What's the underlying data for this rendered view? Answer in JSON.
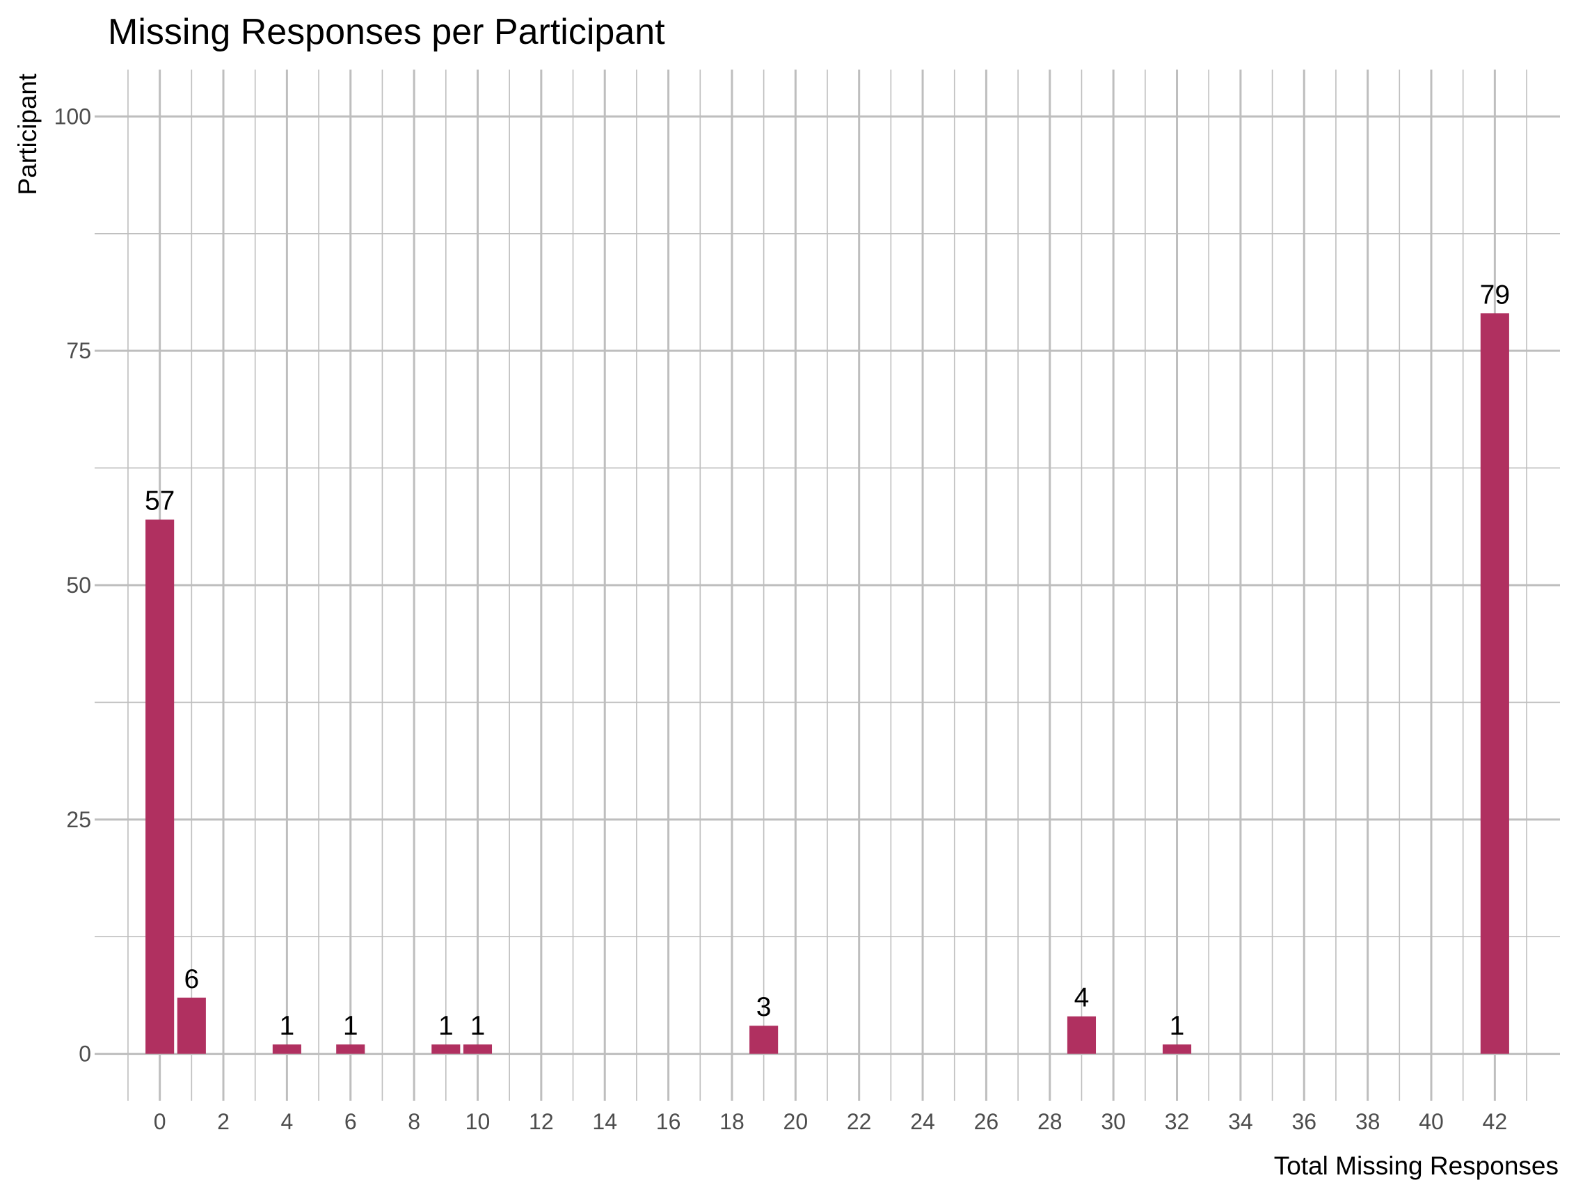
{
  "chart_data": {
    "type": "bar",
    "title": "Missing Responses per Participant",
    "xlabel": "Total Missing Responses",
    "ylabel": "Participant",
    "x": [
      0,
      1,
      4,
      6,
      9,
      10,
      19,
      29,
      32,
      42
    ],
    "values": [
      57,
      6,
      1,
      1,
      1,
      1,
      3,
      4,
      1,
      79
    ],
    "data_labels": [
      "57",
      "6",
      "1",
      "1",
      "1",
      "1",
      "3",
      "4",
      "1",
      "79"
    ],
    "xticks": [
      0,
      2,
      4,
      6,
      8,
      10,
      12,
      14,
      16,
      18,
      20,
      22,
      24,
      26,
      28,
      30,
      32,
      34,
      36,
      38,
      40,
      42
    ],
    "xtick_labels": [
      "0",
      "2",
      "4",
      "6",
      "8",
      "10",
      "12",
      "14",
      "16",
      "18",
      "20",
      "22",
      "24",
      "26",
      "28",
      "30",
      "32",
      "34",
      "36",
      "38",
      "40",
      "42"
    ],
    "yticks": [
      0,
      25,
      50,
      75,
      100
    ],
    "ytick_labels": [
      "0",
      "25",
      "50",
      "75",
      "100"
    ],
    "xlim": [
      -2.05,
      44.05
    ],
    "ylim": [
      -5,
      105
    ],
    "grid": true,
    "bar_color": "#b03060",
    "grid_color": "#bebebe"
  }
}
